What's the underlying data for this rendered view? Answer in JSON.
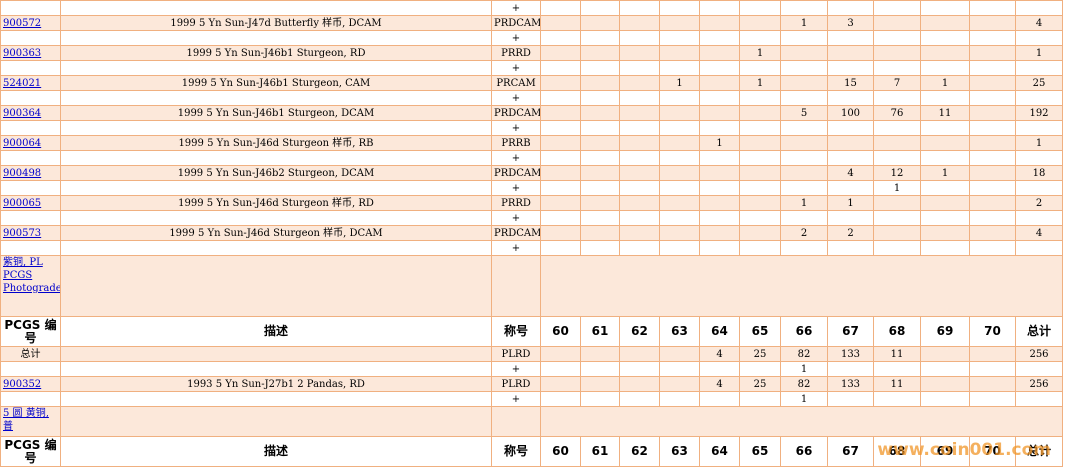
{
  "table": {
    "rows": [
      {
        "cells": [
          null,
          null,
          "+",
          null,
          null,
          null,
          null,
          null,
          null,
          null,
          null,
          null,
          null,
          null,
          null
        ]
      },
      {
        "cells": [
          "900572",
          "1999 5 Yn Sun-J47d Butterfly 样币, DCAM",
          "PRDCAM",
          null,
          null,
          null,
          null,
          null,
          null,
          1,
          3,
          null,
          null,
          null,
          4
        ]
      },
      {
        "cells": [
          null,
          null,
          "+",
          null,
          null,
          null,
          null,
          null,
          null,
          null,
          null,
          null,
          null,
          null,
          null
        ]
      },
      {
        "cells": [
          "900363",
          "1999 5 Yn Sun-J46b1 Sturgeon, RD",
          "PRRD",
          null,
          null,
          null,
          null,
          null,
          1,
          null,
          null,
          null,
          null,
          null,
          1
        ]
      },
      {
        "cells": [
          null,
          null,
          "+",
          null,
          null,
          null,
          null,
          null,
          null,
          null,
          null,
          null,
          null,
          null,
          null
        ]
      },
      {
        "cells": [
          "524021",
          "1999 5 Yn Sun-J46b1 Sturgeon, CAM",
          "PRCAM",
          null,
          null,
          null,
          1,
          null,
          1,
          null,
          15,
          7,
          1,
          null,
          25
        ]
      },
      {
        "cells": [
          null,
          null,
          "+",
          null,
          null,
          null,
          null,
          null,
          null,
          null,
          null,
          null,
          null,
          null,
          null
        ]
      },
      {
        "cells": [
          "900364",
          "1999 5 Yn Sun-J46b1 Sturgeon, DCAM",
          "PRDCAM",
          null,
          null,
          null,
          null,
          null,
          null,
          5,
          100,
          76,
          11,
          null,
          192
        ]
      },
      {
        "cells": [
          null,
          null,
          "+",
          null,
          null,
          null,
          null,
          null,
          null,
          null,
          null,
          null,
          null,
          null,
          null
        ]
      },
      {
        "cells": [
          "900064",
          "1999 5 Yn Sun-J46d Sturgeon 样币, RB",
          "PRRB",
          null,
          null,
          null,
          null,
          1,
          null,
          null,
          null,
          null,
          null,
          null,
          1
        ]
      },
      {
        "cells": [
          null,
          null,
          "+",
          null,
          null,
          null,
          null,
          null,
          null,
          null,
          null,
          null,
          null,
          null,
          null
        ]
      },
      {
        "cells": [
          "900498",
          "1999 5 Yn Sun-J46b2 Sturgeon, DCAM",
          "PRDCAM",
          null,
          null,
          null,
          null,
          null,
          null,
          null,
          4,
          12,
          1,
          null,
          18
        ]
      },
      {
        "cells": [
          null,
          null,
          "+",
          null,
          null,
          null,
          null,
          null,
          null,
          null,
          null,
          1,
          null,
          null,
          null
        ]
      },
      {
        "cells": [
          "900065",
          "1999 5 Yn Sun-J46d Sturgeon 样币, RD",
          "PRRD",
          null,
          null,
          null,
          null,
          null,
          null,
          1,
          1,
          null,
          null,
          null,
          2
        ]
      },
      {
        "cells": [
          null,
          null,
          "+",
          null,
          null,
          null,
          null,
          null,
          null,
          null,
          null,
          null,
          null,
          null,
          null
        ]
      },
      {
        "cells": [
          "900573",
          "1999 5 Yn Sun-J46d Sturgeon 样币, DCAM",
          "PRDCAM",
          null,
          null,
          null,
          null,
          null,
          null,
          2,
          2,
          null,
          null,
          null,
          4
        ]
      },
      {
        "cells": [
          null,
          null,
          "+",
          null,
          null,
          null,
          null,
          null,
          null,
          null,
          null,
          null,
          null,
          null,
          null
        ]
      },
      {
        "section": "紫铜, PL PCGS Photograde"
      },
      {
        "header": [
          "PCGS 编号",
          "描述",
          "称号",
          "60",
          "61",
          "62",
          "63",
          "64",
          "65",
          "66",
          "67",
          "68",
          "69",
          "70",
          "总计"
        ]
      },
      {
        "cells": [
          "总计",
          null,
          "PLRD",
          null,
          null,
          null,
          null,
          4,
          25,
          82,
          133,
          11,
          null,
          null,
          256
        ]
      },
      {
        "cells": [
          null,
          null,
          "+",
          null,
          null,
          null,
          null,
          null,
          null,
          1,
          null,
          null,
          null,
          null,
          null
        ]
      },
      {
        "cells": [
          "900352",
          "1993 5 Yn Sun-J27b1 2 Pandas, RD",
          "PLRD",
          null,
          null,
          null,
          null,
          4,
          25,
          82,
          133,
          11,
          null,
          null,
          256
        ]
      },
      {
        "cells": [
          null,
          null,
          "+",
          null,
          null,
          null,
          null,
          null,
          null,
          1,
          null,
          null,
          null,
          null,
          null
        ]
      },
      {
        "section": "5 圆 黄铜, 普"
      },
      {
        "header": [
          "PCGS 编号",
          "描述",
          "称号",
          "60",
          "61",
          "62",
          "63",
          "64",
          "65",
          "66",
          "67",
          "68",
          "69",
          "70",
          "总计"
        ]
      }
    ]
  },
  "watermark": "www.coin001.com"
}
